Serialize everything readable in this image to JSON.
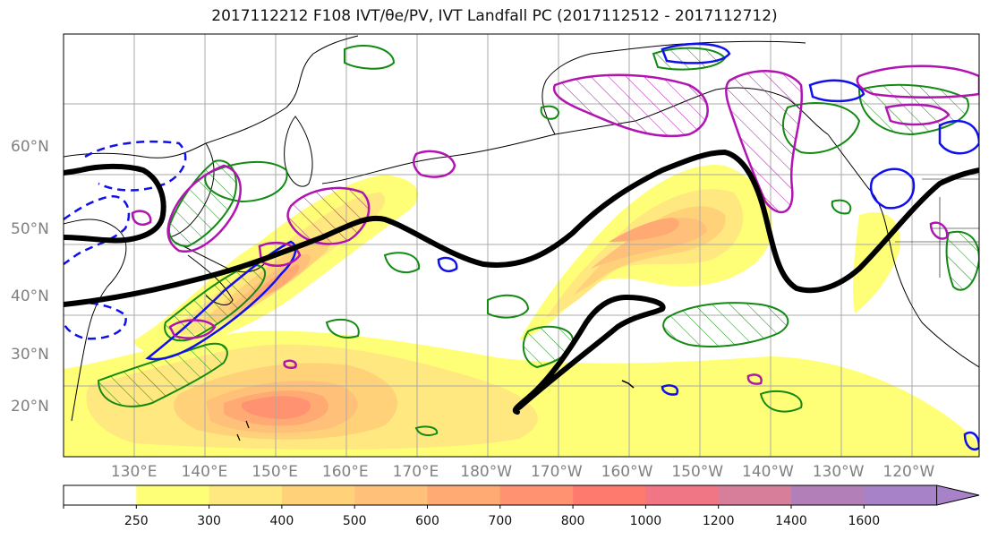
{
  "title": "2017112212 F108 IVT/θe/PV, IVT Landfall PC (2017112512 - 2017112712)",
  "lat_labels": [
    {
      "label": "60°N",
      "lat": 60
    },
    {
      "label": "50°N",
      "lat": 50
    },
    {
      "label": "40°N",
      "lat": 40
    },
    {
      "label": "30°N",
      "lat": 30
    },
    {
      "label": "20°N",
      "lat": 20
    }
  ],
  "lon_labels": [
    {
      "label": "130°E",
      "lon": 130
    },
    {
      "label": "140°E",
      "lon": 140
    },
    {
      "label": "150°E",
      "lon": 150
    },
    {
      "label": "160°E",
      "lon": 160
    },
    {
      "label": "170°E",
      "lon": 170
    },
    {
      "label": "180°W",
      "lon": 180
    },
    {
      "label": "170°W",
      "lon": 190
    },
    {
      "label": "160°W",
      "lon": 200
    },
    {
      "label": "150°W",
      "lon": 210
    },
    {
      "label": "140°W",
      "lon": 220
    },
    {
      "label": "130°W",
      "lon": 230
    },
    {
      "label": "120°W",
      "lon": 240
    }
  ],
  "map_extent": {
    "lon_min": 120,
    "lon_max": 250,
    "lat_min": 10,
    "lat_max": 70
  },
  "colorbar": {
    "ticks": [
      "250",
      "300",
      "400",
      "500",
      "600",
      "700",
      "800",
      "1000",
      "1200",
      "1400",
      "1600"
    ],
    "colors": [
      "#ffffff",
      "#ffff77",
      "#ffe880",
      "#ffd27a",
      "#ffc07a",
      "#ffaa72",
      "#ff9270",
      "#ff7a6e",
      "#f07585",
      "#d77f9a",
      "#b27fb8",
      "#a882c8"
    ],
    "extend": "max"
  },
  "colors": {
    "contour_black": "#000000",
    "contour_green": "#138a13",
    "contour_blue": "#1010ee",
    "contour_magenta": "#b214b2",
    "coast": "#000000",
    "grid": "#aaaaaa"
  }
}
